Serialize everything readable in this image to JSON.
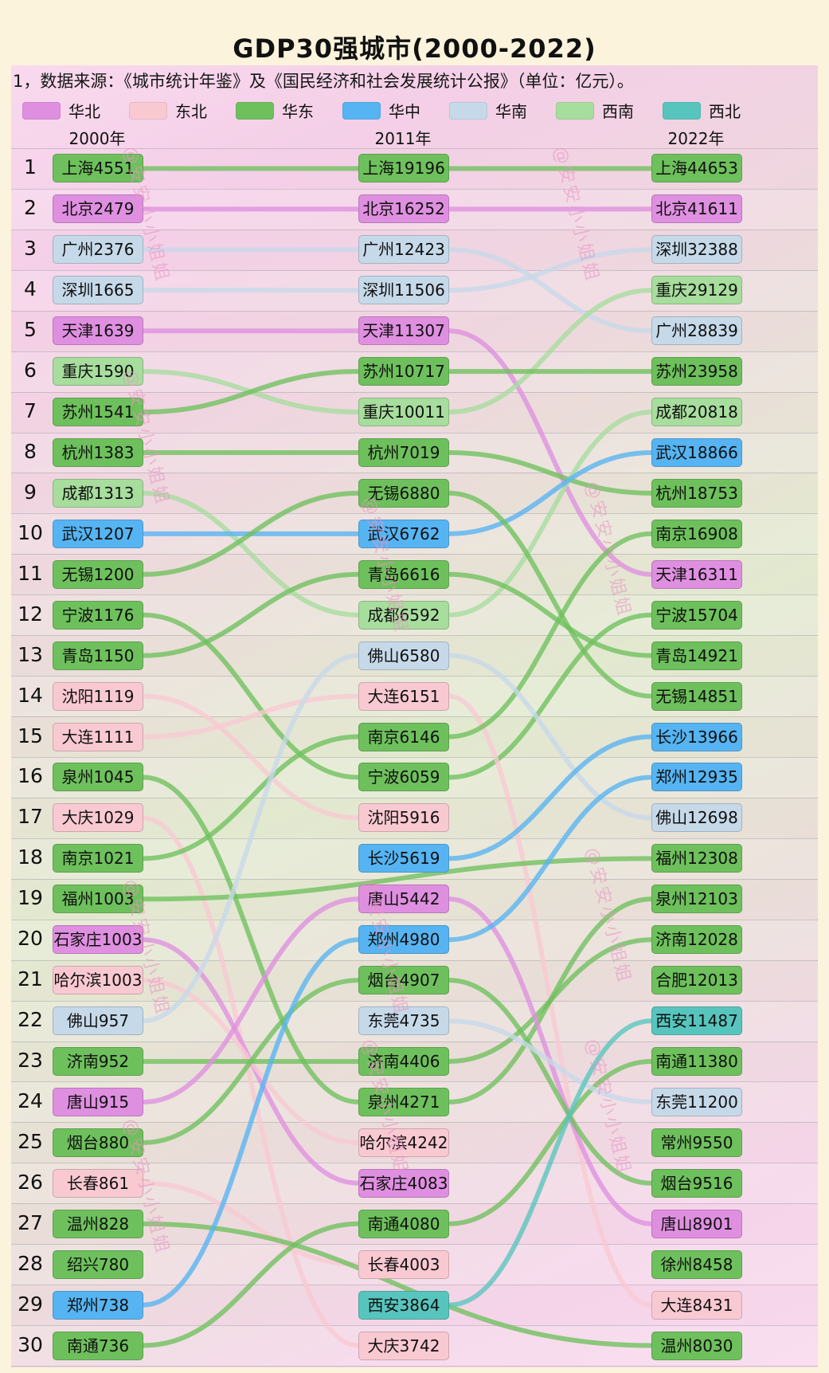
{
  "title": "GDP30强城市(2000-2022)",
  "source_note": "1，数据来源：《城市统计年鉴》及《国民经济和社会发展统计公报》（单位：亿元）。",
  "watermark": "@安安小小姐姐",
  "columns": [
    "2000年",
    "2011年",
    "2022年"
  ],
  "row_ranks": [
    1,
    2,
    3,
    4,
    5,
    6,
    7,
    8,
    9,
    10,
    11,
    12,
    13,
    14,
    15,
    16,
    17,
    18,
    19,
    20,
    21,
    22,
    23,
    24,
    25,
    26,
    27,
    28,
    29,
    30
  ],
  "chart_data": {
    "type": "bump",
    "title": "GDP30强城市(2000-2022)",
    "unit": "亿元",
    "years": [
      "2000年",
      "2011年",
      "2022年"
    ],
    "n_ranks": 30,
    "legend_position": "top",
    "regions": [
      {
        "name": "华北",
        "color": "#df8fe0"
      },
      {
        "name": "东北",
        "color": "#f9c9d2"
      },
      {
        "name": "华东",
        "color": "#6ec05c"
      },
      {
        "name": "华中",
        "color": "#56b4f2"
      },
      {
        "name": "华南",
        "color": "#c6d9e9"
      },
      {
        "name": "西南",
        "color": "#a7dd9d"
      },
      {
        "name": "西北",
        "color": "#57c5bd"
      }
    ],
    "cities": [
      {
        "name": "上海",
        "region": "华东",
        "entries": [
          [
            1,
            4551
          ],
          [
            1,
            19196
          ],
          [
            1,
            44653
          ]
        ]
      },
      {
        "name": "北京",
        "region": "华北",
        "entries": [
          [
            2,
            2479
          ],
          [
            2,
            16252
          ],
          [
            2,
            41611
          ]
        ]
      },
      {
        "name": "广州",
        "region": "华南",
        "entries": [
          [
            3,
            2376
          ],
          [
            3,
            12423
          ],
          [
            5,
            28839
          ]
        ]
      },
      {
        "name": "深圳",
        "region": "华南",
        "entries": [
          [
            4,
            1665
          ],
          [
            4,
            11506
          ],
          [
            3,
            32388
          ]
        ]
      },
      {
        "name": "天津",
        "region": "华北",
        "entries": [
          [
            5,
            1639
          ],
          [
            5,
            11307
          ],
          [
            11,
            16311
          ]
        ]
      },
      {
        "name": "重庆",
        "region": "西南",
        "entries": [
          [
            6,
            1590
          ],
          [
            7,
            10011
          ],
          [
            4,
            29129
          ]
        ]
      },
      {
        "name": "苏州",
        "region": "华东",
        "entries": [
          [
            7,
            1541
          ],
          [
            6,
            10717
          ],
          [
            6,
            23958
          ]
        ]
      },
      {
        "name": "杭州",
        "region": "华东",
        "entries": [
          [
            8,
            1383
          ],
          [
            8,
            7019
          ],
          [
            9,
            18753
          ]
        ]
      },
      {
        "name": "成都",
        "region": "西南",
        "entries": [
          [
            9,
            1313
          ],
          [
            12,
            6592
          ],
          [
            7,
            20818
          ]
        ]
      },
      {
        "name": "武汉",
        "region": "华中",
        "entries": [
          [
            10,
            1207
          ],
          [
            10,
            6762
          ],
          [
            8,
            18866
          ]
        ]
      },
      {
        "name": "无锡",
        "region": "华东",
        "entries": [
          [
            11,
            1200
          ],
          [
            9,
            6880
          ],
          [
            14,
            14851
          ]
        ]
      },
      {
        "name": "宁波",
        "region": "华东",
        "entries": [
          [
            12,
            1176
          ],
          [
            16,
            6059
          ],
          [
            12,
            15704
          ]
        ]
      },
      {
        "name": "青岛",
        "region": "华东",
        "entries": [
          [
            13,
            1150
          ],
          [
            11,
            6616
          ],
          [
            13,
            14921
          ]
        ]
      },
      {
        "name": "沈阳",
        "region": "东北",
        "entries": [
          [
            14,
            1119
          ],
          [
            17,
            5916
          ],
          null
        ]
      },
      {
        "name": "大连",
        "region": "东北",
        "entries": [
          [
            15,
            1111
          ],
          [
            14,
            6151
          ],
          [
            29,
            8431
          ]
        ]
      },
      {
        "name": "泉州",
        "region": "华东",
        "entries": [
          [
            16,
            1045
          ],
          [
            24,
            4271
          ],
          [
            19,
            12103
          ]
        ]
      },
      {
        "name": "大庆",
        "region": "东北",
        "entries": [
          [
            17,
            1029
          ],
          [
            30,
            3742
          ],
          null
        ]
      },
      {
        "name": "南京",
        "region": "华东",
        "entries": [
          [
            18,
            1021
          ],
          [
            15,
            6146
          ],
          [
            10,
            16908
          ]
        ]
      },
      {
        "name": "福州",
        "region": "华东",
        "entries": [
          [
            19,
            1003
          ],
          null,
          [
            18,
            12308
          ]
        ]
      },
      {
        "name": "石家庄",
        "region": "华北",
        "entries": [
          [
            20,
            1003
          ],
          [
            26,
            4083
          ],
          null
        ]
      },
      {
        "name": "哈尔滨",
        "region": "东北",
        "entries": [
          [
            21,
            1003
          ],
          [
            25,
            4242
          ],
          null
        ]
      },
      {
        "name": "佛山",
        "region": "华南",
        "entries": [
          [
            22,
            957
          ],
          [
            13,
            6580
          ],
          [
            17,
            12698
          ]
        ]
      },
      {
        "name": "济南",
        "region": "华东",
        "entries": [
          [
            23,
            952
          ],
          [
            23,
            4406
          ],
          [
            20,
            12028
          ]
        ]
      },
      {
        "name": "唐山",
        "region": "华北",
        "entries": [
          [
            24,
            915
          ],
          [
            19,
            5442
          ],
          [
            27,
            8901
          ]
        ]
      },
      {
        "name": "烟台",
        "region": "华东",
        "entries": [
          [
            25,
            880
          ],
          [
            21,
            4907
          ],
          [
            26,
            9516
          ]
        ]
      },
      {
        "name": "长春",
        "region": "东北",
        "entries": [
          [
            26,
            861
          ],
          [
            28,
            4003
          ],
          null
        ]
      },
      {
        "name": "温州",
        "region": "华东",
        "entries": [
          [
            27,
            828
          ],
          null,
          [
            30,
            8030
          ]
        ]
      },
      {
        "name": "绍兴",
        "region": "华东",
        "entries": [
          [
            28,
            780
          ],
          null,
          null
        ]
      },
      {
        "name": "郑州",
        "region": "华中",
        "entries": [
          [
            29,
            738
          ],
          [
            20,
            4980
          ],
          [
            16,
            12935
          ]
        ]
      },
      {
        "name": "南通",
        "region": "华东",
        "entries": [
          [
            30,
            736
          ],
          [
            27,
            4080
          ],
          [
            23,
            11380
          ]
        ]
      },
      {
        "name": "长沙",
        "region": "华中",
        "entries": [
          null,
          [
            18,
            5619
          ],
          [
            15,
            13966
          ]
        ]
      },
      {
        "name": "东莞",
        "region": "华南",
        "entries": [
          null,
          [
            22,
            4735
          ],
          [
            24,
            11200
          ]
        ]
      },
      {
        "name": "西安",
        "region": "西北",
        "entries": [
          null,
          [
            29,
            3864
          ],
          [
            22,
            11487
          ]
        ]
      },
      {
        "name": "合肥",
        "region": "华东",
        "entries": [
          null,
          null,
          [
            21,
            12013
          ]
        ]
      },
      {
        "name": "常州",
        "region": "华东",
        "entries": [
          null,
          null,
          [
            25,
            9550
          ]
        ]
      },
      {
        "name": "徐州",
        "region": "华东",
        "entries": [
          null,
          null,
          [
            28,
            8458
          ]
        ]
      }
    ]
  }
}
